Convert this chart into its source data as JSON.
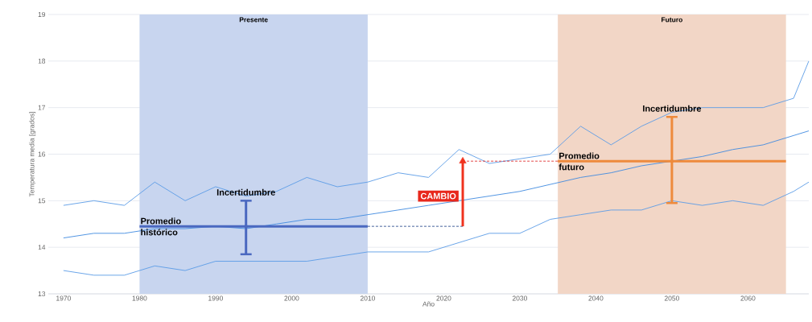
{
  "chart_data": {
    "type": "line",
    "xlabel": "Año",
    "ylabel": "Temperatura media [grados]",
    "xlim": [
      1968,
      2068
    ],
    "ylim": [
      13,
      19
    ],
    "xticks": [
      1970,
      1980,
      1990,
      2000,
      2010,
      2020,
      2030,
      2040,
      2050,
      2060
    ],
    "yticks": [
      13,
      14,
      15,
      16,
      17,
      18,
      19
    ],
    "grid": "y",
    "x": [
      1970,
      1974,
      1978,
      1982,
      1986,
      1990,
      1994,
      1998,
      2002,
      2006,
      2010,
      2014,
      2018,
      2022,
      2026,
      2030,
      2034,
      2038,
      2042,
      2046,
      2050,
      2054,
      2058,
      2062,
      2066,
      2068
    ],
    "series": [
      {
        "color": "#5b9be6",
        "values": [
          14.9,
          15.0,
          14.9,
          15.4,
          15.0,
          15.3,
          15.1,
          15.2,
          15.5,
          15.3,
          15.4,
          15.6,
          15.5,
          16.1,
          15.8,
          15.9,
          16.0,
          16.6,
          16.2,
          16.6,
          16.9,
          17.0,
          17.0,
          17.0,
          17.2,
          18.0
        ]
      },
      {
        "color": "#3f8ae0",
        "values": [
          14.2,
          14.3,
          14.3,
          14.4,
          14.4,
          14.45,
          14.4,
          14.5,
          14.6,
          14.6,
          14.7,
          14.8,
          14.9,
          15.0,
          15.1,
          15.2,
          15.35,
          15.5,
          15.6,
          15.75,
          15.85,
          15.95,
          16.1,
          16.2,
          16.4,
          16.5
        ]
      },
      {
        "color": "#5b9be6",
        "values": [
          13.5,
          13.4,
          13.4,
          13.6,
          13.5,
          13.7,
          13.7,
          13.7,
          13.7,
          13.8,
          13.9,
          13.9,
          13.9,
          14.1,
          14.3,
          14.3,
          14.6,
          14.7,
          14.8,
          14.8,
          15.0,
          14.9,
          15.0,
          14.9,
          15.2,
          15.4
        ]
      },
      {
        "type": "line",
        "color": "#4a68c0",
        "x": [
          1980,
          2010
        ],
        "values": [
          14.45,
          14.45
        ]
      },
      {
        "type": "scatter",
        "color": "#4a68c0",
        "x": [
          1994
        ],
        "values": [
          14.45
        ],
        "errors": [
          [
            13.85,
            15.0
          ]
        ]
      },
      {
        "type": "line",
        "color": "#ee8a3c",
        "x": [
          2035,
          2065
        ],
        "values": [
          15.85,
          15.85
        ]
      },
      {
        "type": "scatter",
        "color": "#ee8a3c",
        "x": [
          2050
        ],
        "values": [
          15.85
        ],
        "errors": [
          [
            14.95,
            16.8
          ]
        ]
      },
      {
        "type": "line",
        "line_style": "dashed",
        "color": "#2f4f8f",
        "x": [
          2010,
          2022.5
        ],
        "values": [
          14.45,
          14.45
        ]
      },
      {
        "type": "line",
        "line_style": "dashed",
        "color": "#e03030",
        "x": [
          2022.5,
          2035
        ],
        "values": [
          15.85,
          15.85
        ]
      },
      {
        "type": "line",
        "color": "#f0321e",
        "x": [
          2022.5,
          2022.5
        ],
        "values": [
          14.45,
          15.85
        ]
      }
    ],
    "bands": [
      {
        "axis": "x",
        "from": 1980,
        "to": 2010,
        "label": "Presente",
        "color": "#c8d5ef"
      },
      {
        "axis": "x",
        "from": 2035,
        "to": 2065,
        "label": "Futuro",
        "color": "#f2d6c6"
      }
    ],
    "annotations": [
      {
        "text": "Incertidumbre",
        "x": 1994,
        "y": 15.0
      },
      {
        "text": "Promedio histórico",
        "x": 1980,
        "y": 14.45
      },
      {
        "text": "Incertidumbre",
        "x": 2050,
        "y": 16.8
      },
      {
        "text": "Promedio futuro",
        "x": 2035,
        "y": 15.85
      },
      {
        "text": "CAMBIO",
        "x": 2022.5,
        "y": 15.1
      }
    ]
  }
}
